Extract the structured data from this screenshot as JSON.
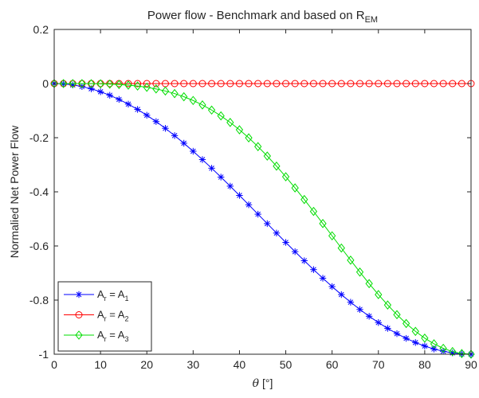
{
  "chart_data": {
    "type": "line",
    "title": "Power flow - Benchmark and based on R",
    "title_subscript": "EM",
    "xlabel_symbol": "θ",
    "xlabel_unit": "[°]",
    "ylabel": "Normalied Net Power Flow",
    "xlim": [
      0,
      90
    ],
    "ylim": [
      -1,
      0.2
    ],
    "xticks": [
      0,
      10,
      20,
      30,
      40,
      50,
      60,
      70,
      80,
      90
    ],
    "yticks": [
      0.2,
      0,
      -0.2,
      -0.4,
      -0.6,
      -0.8,
      -1
    ],
    "ytick_labels": [
      "0.2",
      "0",
      "-0.2",
      "-0.4",
      "-0.6",
      "-0.8",
      "-1"
    ],
    "grid": false,
    "legend_position": "bottom-left",
    "x": [
      0,
      2,
      4,
      6,
      8,
      10,
      12,
      14,
      16,
      18,
      20,
      22,
      24,
      26,
      28,
      30,
      32,
      34,
      36,
      38,
      40,
      42,
      44,
      46,
      48,
      50,
      52,
      54,
      56,
      58,
      60,
      62,
      64,
      66,
      68,
      70,
      72,
      74,
      76,
      78,
      80,
      82,
      84,
      86,
      88,
      90
    ],
    "series": [
      {
        "legend_main": "A",
        "legend_sub": "r",
        "legend_eq": " = A",
        "legend_sub2": "1",
        "color": "#0000ff",
        "marker": "asterisk",
        "values": [
          0,
          -0.0012,
          -0.0049,
          -0.0109,
          -0.0193,
          -0.0302,
          -0.0432,
          -0.0585,
          -0.076,
          -0.0955,
          -0.117,
          -0.1403,
          -0.1654,
          -0.1922,
          -0.2204,
          -0.25,
          -0.2808,
          -0.3127,
          -0.3455,
          -0.379,
          -0.4132,
          -0.4477,
          -0.4826,
          -0.5174,
          -0.5523,
          -0.5868,
          -0.621,
          -0.6545,
          -0.6873,
          -0.7192,
          -0.75,
          -0.7796,
          -0.8078,
          -0.8346,
          -0.8597,
          -0.883,
          -0.9045,
          -0.924,
          -0.9415,
          -0.9568,
          -0.9698,
          -0.9807,
          -0.9891,
          -0.9951,
          -0.9988,
          -1.0
        ]
      },
      {
        "legend_main": "A",
        "legend_sub": "r",
        "legend_eq": " = A",
        "legend_sub2": "2",
        "color": "#ff0000",
        "marker": "circle",
        "values": [
          0,
          0,
          0,
          0,
          0,
          0,
          0,
          0,
          0,
          0,
          0,
          0,
          0,
          0,
          0,
          0,
          0,
          0,
          0,
          0,
          0,
          0,
          0,
          0,
          0,
          0,
          0,
          0,
          0,
          0,
          0,
          0,
          0,
          0,
          0,
          0,
          0,
          0,
          0,
          0,
          0,
          0,
          0,
          0,
          0,
          0
        ]
      },
      {
        "legend_main": "A",
        "legend_sub": "r",
        "legend_eq": " = A",
        "legend_sub2": "3",
        "color": "#00dd00",
        "marker": "diamond",
        "values": [
          0,
          0,
          0,
          -0.0001,
          -0.0004,
          -0.0009,
          -0.0019,
          -0.0034,
          -0.0058,
          -0.0091,
          -0.0137,
          -0.0197,
          -0.0274,
          -0.0369,
          -0.0486,
          -0.0625,
          -0.0789,
          -0.0978,
          -0.1194,
          -0.1437,
          -0.1707,
          -0.2005,
          -0.2329,
          -0.2677,
          -0.305,
          -0.3443,
          -0.3856,
          -0.4284,
          -0.4724,
          -0.5172,
          -0.5625,
          -0.6077,
          -0.6525,
          -0.6965,
          -0.7391,
          -0.7797,
          -0.8181,
          -0.8538,
          -0.8865,
          -0.9155,
          -0.9406,
          -0.9617,
          -0.9783,
          -0.9903,
          -0.9976,
          -1.0
        ]
      }
    ]
  }
}
